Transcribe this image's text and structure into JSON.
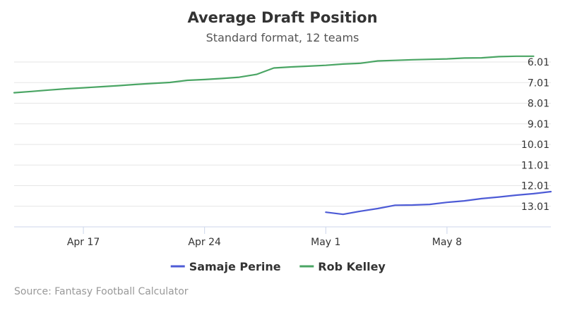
{
  "chart_data": {
    "type": "line",
    "title": "Average Draft Position",
    "subtitle": "Standard format, 12 teams",
    "yaxis": {
      "reversed": true,
      "range": [
        6.01,
        14.01
      ],
      "ticks": [
        {
          "value": 6.01,
          "label": "6.01"
        },
        {
          "value": 7.01,
          "label": "7.01"
        },
        {
          "value": 8.01,
          "label": "8.01"
        },
        {
          "value": 9.01,
          "label": "9.01"
        },
        {
          "value": 10.01,
          "label": "10.01"
        },
        {
          "value": 11.01,
          "label": "11.01"
        },
        {
          "value": 12.01,
          "label": "12.01"
        },
        {
          "value": 13.01,
          "label": "13.01"
        }
      ],
      "position": "right",
      "grid": true
    },
    "xaxis": {
      "range": [
        "Apr 13",
        "May 14"
      ],
      "ticks": [
        {
          "date": "Apr 17",
          "label": "Apr 17"
        },
        {
          "date": "Apr 24",
          "label": "Apr 24"
        },
        {
          "date": "May 1",
          "label": "May 1"
        },
        {
          "date": "May 8",
          "label": "May 8"
        }
      ]
    },
    "series": [
      {
        "name": "Samaje Perine",
        "color": "#4d5bd6",
        "points": [
          {
            "date": "May 1",
            "adp": 13.3
          },
          {
            "date": "May 2",
            "adp": 13.4
          },
          {
            "date": "May 3",
            "adp": 13.25
          },
          {
            "date": "May 4",
            "adp": 13.12
          },
          {
            "date": "May 5",
            "adp": 12.96
          },
          {
            "date": "May 6",
            "adp": 12.95
          },
          {
            "date": "May 7",
            "adp": 12.92
          },
          {
            "date": "May 8",
            "adp": 12.82
          },
          {
            "date": "May 9",
            "adp": 12.75
          },
          {
            "date": "May 10",
            "adp": 12.64
          },
          {
            "date": "May 11",
            "adp": 12.56
          },
          {
            "date": "May 12",
            "adp": 12.47
          },
          {
            "date": "May 13",
            "adp": 12.4
          },
          {
            "date": "May 14",
            "adp": 12.3
          }
        ]
      },
      {
        "name": "Rob Kelley",
        "color": "#4aa564",
        "points": [
          {
            "date": "Apr 13",
            "adp": 7.5
          },
          {
            "date": "Apr 14",
            "adp": 7.44
          },
          {
            "date": "Apr 15",
            "adp": 7.37
          },
          {
            "date": "Apr 16",
            "adp": 7.31
          },
          {
            "date": "Apr 17",
            "adp": 7.26
          },
          {
            "date": "Apr 18",
            "adp": 7.21
          },
          {
            "date": "Apr 19",
            "adp": 7.16
          },
          {
            "date": "Apr 20",
            "adp": 7.1
          },
          {
            "date": "Apr 21",
            "adp": 7.05
          },
          {
            "date": "Apr 22",
            "adp": 7.0
          },
          {
            "date": "Apr 23",
            "adp": 6.9
          },
          {
            "date": "Apr 24",
            "adp": 6.86
          },
          {
            "date": "Apr 25",
            "adp": 6.81
          },
          {
            "date": "Apr 26",
            "adp": 6.75
          },
          {
            "date": "Apr 27",
            "adp": 6.61
          },
          {
            "date": "Apr 28",
            "adp": 6.3
          },
          {
            "date": "Apr 29",
            "adp": 6.25
          },
          {
            "date": "Apr 30",
            "adp": 6.21
          },
          {
            "date": "May 1",
            "adp": 6.17
          },
          {
            "date": "May 2",
            "adp": 6.11
          },
          {
            "date": "May 3",
            "adp": 6.07
          },
          {
            "date": "May 4",
            "adp": 5.96
          },
          {
            "date": "May 5",
            "adp": 5.93
          },
          {
            "date": "May 6",
            "adp": 5.9
          },
          {
            "date": "May 7",
            "adp": 5.88
          },
          {
            "date": "May 8",
            "adp": 5.86
          },
          {
            "date": "May 9",
            "adp": 5.82
          },
          {
            "date": "May 10",
            "adp": 5.81
          },
          {
            "date": "May 11",
            "adp": 5.75
          },
          {
            "date": "May 12",
            "adp": 5.73
          },
          {
            "date": "May 13",
            "adp": 5.73
          }
        ]
      }
    ],
    "legend": "bottom-center"
  },
  "credits": "Source: Fantasy Football Calculator"
}
